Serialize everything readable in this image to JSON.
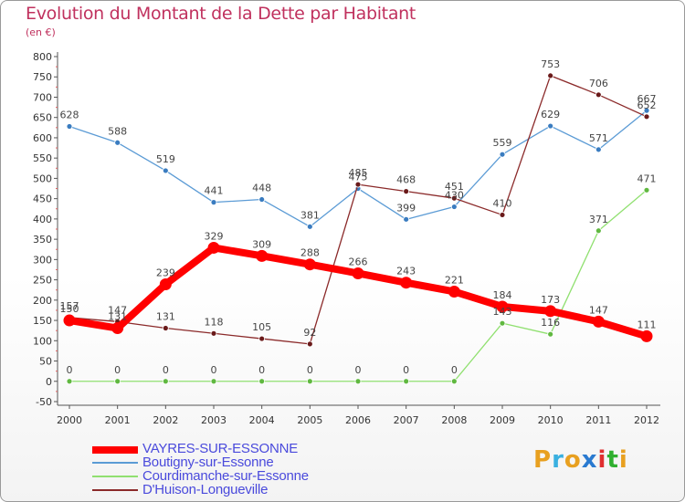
{
  "title": "Evolution du Montant de la Dette par Habitant",
  "subtitle": "(en €)",
  "logo": {
    "text": "Proxiti",
    "colors": [
      "#e8a020",
      "#3ab0e0",
      "#e8a020",
      "#2a7ad0",
      "#e03030",
      "#30b030",
      "#e8a020"
    ]
  },
  "chart_data": {
    "type": "line",
    "x": [
      "2000",
      "2001",
      "2002",
      "2003",
      "2004",
      "2005",
      "2006",
      "2007",
      "2008",
      "2009",
      "2010",
      "2011",
      "2012"
    ],
    "ylim": [
      -50,
      800
    ],
    "ystep": 50,
    "grid": false,
    "legend_position": "bottom-left",
    "series": [
      {
        "name": "VAYRES-SUR-ESSONNE",
        "color": "#ff0000",
        "values": [
          150,
          131,
          239,
          329,
          309,
          288,
          266,
          243,
          221,
          184,
          173,
          147,
          111
        ],
        "labels": [
          "150",
          "131",
          "239",
          "329",
          "309",
          "288",
          "266",
          "243",
          "221",
          "184",
          "173",
          "147",
          "111"
        ]
      },
      {
        "name": "Boutigny-sur-Essonne",
        "color": "#5b9bd5",
        "values": [
          628,
          588,
          519,
          441,
          448,
          381,
          475,
          399,
          430,
          559,
          629,
          571,
          667
        ],
        "labels": [
          "628",
          "588",
          "519",
          "441",
          "448",
          "381",
          "475",
          "399",
          "430",
          "559",
          "629",
          "571",
          "667"
        ]
      },
      {
        "name": "Courdimanche-sur-Essonne",
        "color": "#90e070",
        "values": [
          0,
          0,
          0,
          0,
          0,
          0,
          0,
          0,
          0,
          143,
          116,
          371,
          471
        ],
        "labels": [
          "0",
          "0",
          "0",
          "0",
          "0",
          "0",
          "0",
          "0",
          "0",
          "143",
          "116",
          "371",
          "471"
        ]
      },
      {
        "name": "D'Huison-Longueville",
        "color": "#8b2a2a",
        "values": [
          157,
          147,
          131,
          118,
          105,
          92,
          485,
          468,
          451,
          410,
          753,
          706,
          652
        ],
        "labels": [
          "157",
          "147",
          "131",
          "118",
          "105",
          "92",
          "485",
          "468",
          "451",
          "410",
          "753",
          "706",
          "652"
        ]
      }
    ]
  }
}
